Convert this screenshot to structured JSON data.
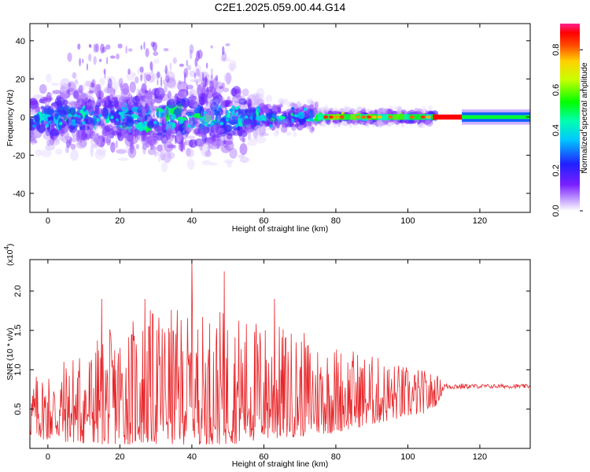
{
  "title": "C2E1.2025.059.00.44.G14",
  "chart_data": [
    {
      "type": "heatmap",
      "xlabel": "Height of straight line (km)",
      "ylabel": "Frequency (Hz)",
      "xlim": [
        -5,
        134
      ],
      "ylim": [
        -50,
        49
      ],
      "xticks": [
        "0",
        "20",
        "40",
        "60",
        "80",
        "100",
        "120"
      ],
      "xtick_values": [
        0,
        20,
        40,
        60,
        80,
        100,
        120
      ],
      "yticks": [
        "40",
        "20",
        "0",
        "-20",
        "-40"
      ],
      "ytick_values": [
        40,
        20,
        0,
        -20,
        -40
      ],
      "colorbar": {
        "label": "Normalized spectral amplitude",
        "range": [
          0,
          0.93
        ],
        "ticks": [
          "0.0",
          "0.2",
          "0.4",
          "0.6",
          "0.8"
        ],
        "tick_values": [
          0,
          0.2,
          0.4,
          0.6,
          0.8
        ],
        "colormap": "rainbow"
      },
      "regions": [
        {
          "x": [
            -5,
            20
          ],
          "freq_spread_hz": 10,
          "amplitude": 0.2
        },
        {
          "x": [
            20,
            55
          ],
          "freq_spread_hz": 12,
          "amplitude": 0.2
        },
        {
          "x": [
            55,
            75
          ],
          "freq_spread_hz": 6,
          "amplitude": 0.3
        },
        {
          "x": [
            75,
            108
          ],
          "freq_spread_hz": 3,
          "amplitude": 0.7
        },
        {
          "x": [
            108,
            115
          ],
          "freq_spread_hz": 2,
          "amplitude": 0.95
        },
        {
          "x": [
            115,
            134
          ],
          "freq_spread_hz": 4,
          "amplitude": 0.4
        }
      ]
    },
    {
      "type": "line",
      "xlabel": "Height of straight line (km)",
      "ylabel": "SNR (10 * v/v)",
      "multiplier": "(x10",
      "multiplier_exp": "4",
      "multiplier_close": ")",
      "xlim": [
        -5,
        134
      ],
      "ylim": [
        0,
        2.4
      ],
      "xticks": [
        "0",
        "20",
        "40",
        "60",
        "80",
        "100",
        "120"
      ],
      "xtick_values": [
        0,
        20,
        40,
        60,
        80,
        100,
        120
      ],
      "yticks": [
        "0.5",
        "1.0",
        "1.5",
        "2.0"
      ],
      "ytick_values": [
        0.5,
        1.0,
        1.5,
        2.0
      ],
      "color": "#e8262a",
      "envelope": {
        "x": [
          -5,
          0,
          10,
          20,
          30,
          40,
          50,
          60,
          70,
          80,
          90,
          100,
          105,
          108,
          110,
          120,
          134
        ],
        "upper": [
          0.9,
          1.05,
          1.3,
          1.6,
          1.8,
          1.75,
          1.75,
          1.65,
          1.5,
          1.35,
          1.2,
          1.05,
          1.0,
          0.95,
          0.84,
          0.82,
          0.82
        ],
        "lower": [
          0.15,
          0.1,
          0.05,
          0.05,
          0.05,
          0.05,
          0.05,
          0.1,
          0.15,
          0.2,
          0.3,
          0.4,
          0.45,
          0.55,
          0.74,
          0.76,
          0.76
        ]
      },
      "peaks": [
        {
          "x": 15,
          "y": 1.9
        },
        {
          "x": 27,
          "y": 1.9
        },
        {
          "x": 40,
          "y": 2.4
        },
        {
          "x": 49,
          "y": 2.25
        },
        {
          "x": 63,
          "y": 1.9
        }
      ]
    }
  ]
}
